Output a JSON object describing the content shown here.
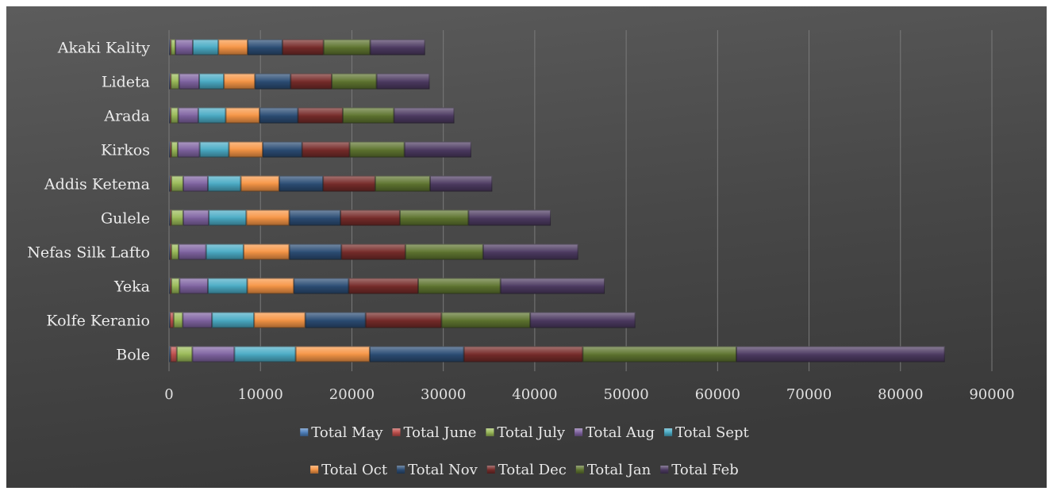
{
  "chart_data": {
    "type": "bar",
    "orientation": "horizontal",
    "stacked": true,
    "categories": [
      "Bole",
      "Kolfe Keranio",
      "Yeka",
      "Nefas Silk Lafto",
      "Gulele",
      "Addis Ketema",
      "Kirkos",
      "Arada",
      "Lideta",
      "Akaki Kality"
    ],
    "series": [
      {
        "name": "Total May",
        "color": "#4f81bd",
        "values": [
          150,
          100,
          100,
          100,
          100,
          100,
          100,
          100,
          100,
          100
        ]
      },
      {
        "name": "Total June",
        "color": "#c0504d",
        "values": [
          700,
          400,
          150,
          150,
          150,
          150,
          150,
          100,
          100,
          100
        ]
      },
      {
        "name": "Total July",
        "color": "#9bbb59",
        "values": [
          1700,
          1000,
          900,
          800,
          1300,
          1300,
          700,
          800,
          900,
          500
        ]
      },
      {
        "name": "Total Aug",
        "color": "#8064a2",
        "values": [
          4600,
          3200,
          3100,
          3000,
          2800,
          2700,
          2400,
          2200,
          2200,
          1900
        ]
      },
      {
        "name": "Total Sept",
        "color": "#4bacc6",
        "values": [
          6700,
          4600,
          4300,
          4100,
          4100,
          3600,
          3200,
          3000,
          2700,
          2800
        ]
      },
      {
        "name": "Total Oct",
        "color": "#f79646",
        "values": [
          8100,
          5600,
          5100,
          5000,
          4700,
          4200,
          3700,
          3700,
          3400,
          3200
        ]
      },
      {
        "name": "Total Nov",
        "color": "#2c4d75",
        "values": [
          10300,
          6600,
          6000,
          5700,
          5600,
          4800,
          4300,
          4200,
          3900,
          3800
        ]
      },
      {
        "name": "Total Dec",
        "color": "#772c2a",
        "values": [
          13000,
          8300,
          7600,
          7000,
          6500,
          5700,
          5200,
          4900,
          4500,
          4500
        ]
      },
      {
        "name": "Total Jan",
        "color": "#5f7530",
        "values": [
          16800,
          9700,
          9000,
          8500,
          7500,
          6000,
          6000,
          5600,
          4900,
          5100
        ]
      },
      {
        "name": "Total Feb",
        "color": "#4d3b62",
        "values": [
          22800,
          11500,
          11400,
          10400,
          9000,
          6800,
          7300,
          6600,
          5800,
          6000
        ]
      }
    ],
    "xlim": [
      0,
      90000
    ],
    "xticks": [
      0,
      10000,
      20000,
      30000,
      40000,
      50000,
      60000,
      70000,
      80000,
      90000
    ],
    "grid": true,
    "legend_position": "bottom"
  }
}
